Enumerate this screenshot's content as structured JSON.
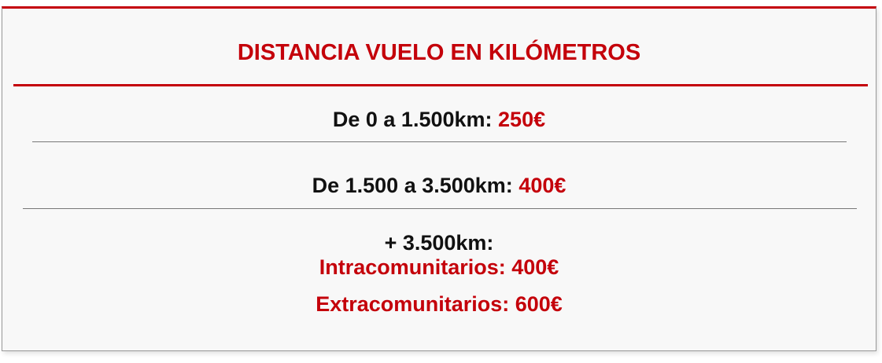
{
  "title": "DISTANCIA VUELO EN KILÓMETROS",
  "rows": [
    {
      "label": "De 0 a 1.500km:",
      "price": "250€"
    },
    {
      "label": "De 1.500 a 3.500km:",
      "price": "400€"
    }
  ],
  "long_haul": {
    "label": "+ 3.500km:",
    "intra": "Intracomunitarios: 400€",
    "extra": "Extracomunitarios: 600€"
  },
  "colors": {
    "accent": "#c4000a",
    "background": "#f8f8f8",
    "text": "#111111"
  }
}
